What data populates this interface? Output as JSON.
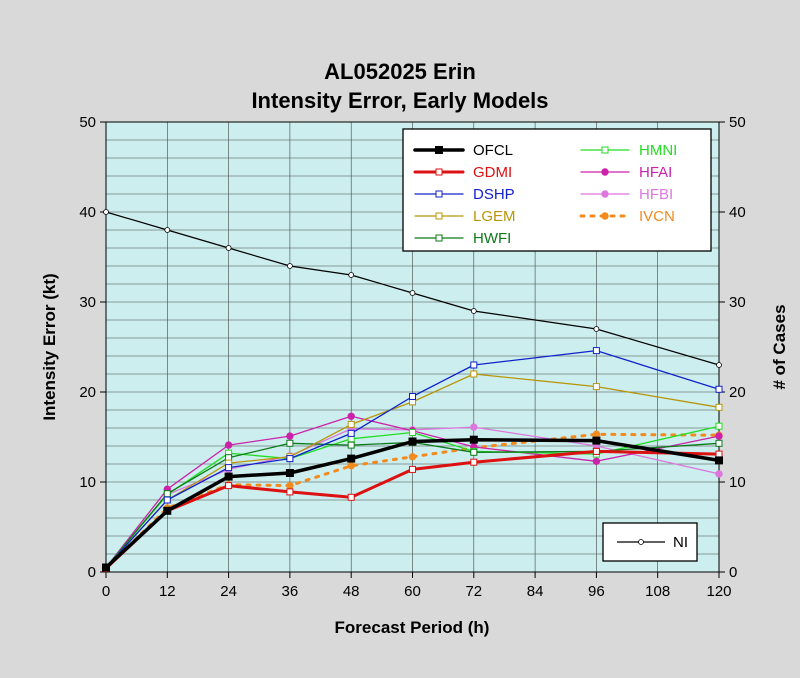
{
  "chart_data": {
    "type": "line",
    "title": "AL052025 Erin",
    "subtitle": "Intensity Error, Early Models",
    "xlabel": "Forecast Period (h)",
    "ylabel": "Intensity Error (kt)",
    "ylabel_right": "# of Cases",
    "x": [
      0,
      12,
      24,
      36,
      48,
      60,
      72,
      96,
      120
    ],
    "xticks": [
      "0",
      "12",
      "24",
      "36",
      "48",
      "60",
      "72",
      "84",
      "96",
      "108",
      "120"
    ],
    "xlim": [
      0,
      120
    ],
    "ylim": [
      0,
      50
    ],
    "ylim_right": [
      0,
      50
    ],
    "yticks": [
      "0",
      "10",
      "20",
      "30",
      "40",
      "50"
    ],
    "yticks_right": [
      "0",
      "10",
      "20",
      "30",
      "40",
      "50"
    ],
    "grid": true,
    "background": "#cceeee",
    "legend_position": "top-right",
    "series": [
      {
        "name": "OFCL",
        "color": "#000000",
        "marker": "square-filled",
        "dash": "solid",
        "width": 3.5,
        "values": [
          0.5,
          6.8,
          10.6,
          11.0,
          12.6,
          14.5,
          14.7,
          14.6,
          12.4
        ]
      },
      {
        "name": "GDMI",
        "color": "#dd1111",
        "marker": "square-open",
        "dash": "solid",
        "width": 3,
        "values": [
          0.4,
          6.8,
          9.6,
          8.9,
          8.3,
          11.4,
          12.2,
          13.4,
          13.1
        ]
      },
      {
        "name": "DSHP",
        "color": "#1122cc",
        "marker": "square-open",
        "dash": "solid",
        "width": 1.3,
        "values": [
          0.5,
          8.0,
          11.6,
          12.6,
          15.4,
          19.5,
          23.0,
          24.6,
          20.3
        ]
      },
      {
        "name": "LGEM",
        "color": "#b8960a",
        "marker": "square-open",
        "dash": "solid",
        "width": 1.3,
        "values": [
          0.5,
          8.0,
          12.1,
          12.8,
          16.4,
          18.9,
          22.0,
          20.6,
          18.3
        ]
      },
      {
        "name": "HWFI",
        "color": "#0d7a1a",
        "marker": "square-open",
        "dash": "solid",
        "width": 1.3,
        "values": [
          0.5,
          8.7,
          12.7,
          14.3,
          14.1,
          14.4,
          13.3,
          13.4,
          14.3
        ]
      },
      {
        "name": "HMNI",
        "color": "#22dd22",
        "marker": "square-open",
        "dash": "solid",
        "width": 1.3,
        "values": [
          0.5,
          8.6,
          13.2,
          12.6,
          14.8,
          15.5,
          13.4,
          13.1,
          16.2
        ]
      },
      {
        "name": "HFAI",
        "color": "#cc22aa",
        "marker": "dot-filled",
        "dash": "solid",
        "width": 1.3,
        "values": [
          0.5,
          9.2,
          14.1,
          15.1,
          17.3,
          15.7,
          13.9,
          12.3,
          15.1
        ]
      },
      {
        "name": "HFBI",
        "color": "#dd77dd",
        "marker": "dot-filled",
        "dash": "solid",
        "width": 1.3,
        "values": [
          0.5,
          8.6,
          11.4,
          12.9,
          15.9,
          15.8,
          16.1,
          14.0,
          10.9
        ]
      },
      {
        "name": "IVCN",
        "color": "#f28a1e",
        "marker": "dot-filled",
        "dash": "dotted",
        "width": 3,
        "values": [
          0.4,
          7.1,
          9.7,
          9.6,
          11.8,
          12.8,
          13.8,
          15.3,
          15.2
        ]
      }
    ],
    "cases": {
      "name": "NI",
      "color": "#000000",
      "marker": "dot-open",
      "values": [
        40,
        38,
        36,
        34,
        33,
        31,
        29,
        27,
        23
      ]
    }
  }
}
